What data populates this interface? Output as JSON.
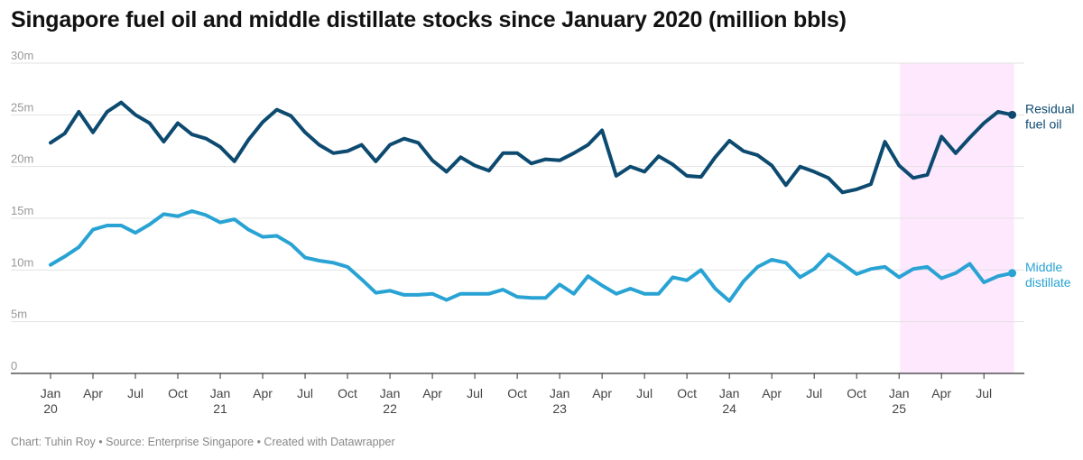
{
  "title": "Singapore fuel oil and middle distillate stocks since January 2020 (million bbls)",
  "footer": "Chart: Tuhin Roy • Source: Enterprise Singapore • Created with Datawrapper",
  "chart_data": {
    "type": "line",
    "title": "Singapore fuel oil and middle distillate stocks since January 2020 (million bbls)",
    "x_start": "2020-01",
    "x_end": "2025-09",
    "y_ticks": [
      0,
      5,
      10,
      15,
      20,
      25,
      30
    ],
    "y_tick_labels": [
      "0",
      "5m",
      "10m",
      "15m",
      "20m",
      "25m",
      "30m"
    ],
    "ylim": [
      0,
      30
    ],
    "grid": true,
    "x_ticks": [
      {
        "month": "2020-01",
        "line1": "Jan",
        "line2": "20"
      },
      {
        "month": "2020-04",
        "line1": "Apr",
        "line2": ""
      },
      {
        "month": "2020-07",
        "line1": "Jul",
        "line2": ""
      },
      {
        "month": "2020-10",
        "line1": "Oct",
        "line2": ""
      },
      {
        "month": "2021-01",
        "line1": "Jan",
        "line2": "21"
      },
      {
        "month": "2021-04",
        "line1": "Apr",
        "line2": ""
      },
      {
        "month": "2021-07",
        "line1": "Jul",
        "line2": ""
      },
      {
        "month": "2021-10",
        "line1": "Oct",
        "line2": ""
      },
      {
        "month": "2022-01",
        "line1": "Jan",
        "line2": "22"
      },
      {
        "month": "2022-04",
        "line1": "Apr",
        "line2": ""
      },
      {
        "month": "2022-07",
        "line1": "Jul",
        "line2": ""
      },
      {
        "month": "2022-10",
        "line1": "Oct",
        "line2": ""
      },
      {
        "month": "2023-01",
        "line1": "Jan",
        "line2": "23"
      },
      {
        "month": "2023-04",
        "line1": "Apr",
        "line2": ""
      },
      {
        "month": "2023-07",
        "line1": "Jul",
        "line2": ""
      },
      {
        "month": "2023-10",
        "line1": "Oct",
        "line2": ""
      },
      {
        "month": "2024-01",
        "line1": "Jan",
        "line2": "24"
      },
      {
        "month": "2024-04",
        "line1": "Apr",
        "line2": ""
      },
      {
        "month": "2024-07",
        "line1": "Jul",
        "line2": ""
      },
      {
        "month": "2024-10",
        "line1": "Oct",
        "line2": ""
      },
      {
        "month": "2025-01",
        "line1": "Jan",
        "line2": "25"
      },
      {
        "month": "2025-04",
        "line1": "Apr",
        "line2": ""
      },
      {
        "month": "2025-07",
        "line1": "Jul",
        "line2": ""
      }
    ],
    "highlight_range": [
      "2025-01",
      "2025-09"
    ],
    "highlight_color": "#fde8fd",
    "series": [
      {
        "name": "Residual fuel oil",
        "label_lines": [
          "Residual",
          "fuel oil"
        ],
        "color": "#0d4a70",
        "values": [
          22.3,
          23.2,
          25.3,
          23.3,
          25.3,
          26.2,
          25.0,
          24.2,
          22.4,
          24.2,
          23.1,
          22.7,
          21.9,
          20.5,
          22.6,
          24.3,
          25.5,
          24.9,
          23.3,
          22.1,
          21.3,
          21.5,
          22.1,
          20.5,
          22.1,
          22.7,
          22.3,
          20.6,
          19.5,
          20.9,
          20.1,
          19.6,
          21.3,
          21.3,
          20.3,
          20.7,
          20.6,
          21.3,
          22.1,
          23.5,
          19.1,
          20.0,
          19.5,
          21.0,
          20.2,
          19.1,
          19.0,
          20.9,
          22.5,
          21.5,
          21.1,
          20.1,
          18.2,
          20.0,
          19.5,
          18.9,
          17.5,
          17.8,
          18.3,
          22.4,
          20.1,
          18.9,
          19.2,
          22.9,
          21.3,
          22.8,
          24.2,
          25.3,
          25.0
        ],
        "end_value": 25.0
      },
      {
        "name": "Middle distillate",
        "label_lines": [
          "Middle",
          "distillate"
        ],
        "color": "#28a3d4",
        "values": [
          10.5,
          11.3,
          12.2,
          13.9,
          14.3,
          14.3,
          13.6,
          14.4,
          15.4,
          15.2,
          15.7,
          15.3,
          14.6,
          14.9,
          13.9,
          13.2,
          13.3,
          12.5,
          11.2,
          10.9,
          10.7,
          10.3,
          9.1,
          7.8,
          8.0,
          7.6,
          7.6,
          7.7,
          7.1,
          7.7,
          7.7,
          7.7,
          8.1,
          7.4,
          7.3,
          7.3,
          8.6,
          7.7,
          9.4,
          8.5,
          7.7,
          8.2,
          7.7,
          7.7,
          9.3,
          9.0,
          10.0,
          8.2,
          7.0,
          8.9,
          10.3,
          11.0,
          10.7,
          9.3,
          10.1,
          11.5,
          10.6,
          9.6,
          10.1,
          10.3,
          9.3,
          10.1,
          10.3,
          9.2,
          9.7,
          10.6,
          8.8,
          9.4,
          9.7
        ],
        "end_value": 9.7
      }
    ]
  }
}
